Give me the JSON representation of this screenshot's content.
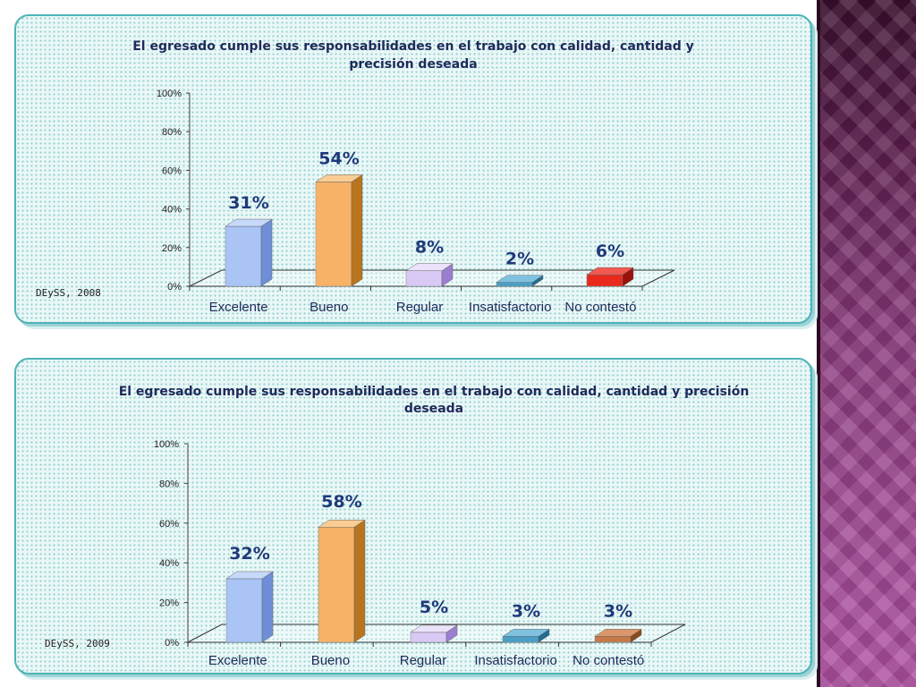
{
  "colors": {
    "panel_border": "#4fb3b8",
    "text_dark": "#1f2a5a",
    "value_label": "#1f3a7a",
    "bar_colors": [
      {
        "front": "#a9c4f5",
        "side": "#6f8ed6",
        "top": "#c7d9fb"
      },
      {
        "front": "#f7b267",
        "side": "#b8741e",
        "top": "#f9cd94"
      },
      {
        "front": "#d9c9f5",
        "side": "#9a7fd0",
        "top": "#ebe2fb"
      },
      {
        "front": "#4a9fc6",
        "side": "#1f6d93",
        "top": "#7fc2e0"
      },
      {
        "front": "#e8291c",
        "side": "#9b120a",
        "top": "#f25a4f"
      }
    ],
    "bar_colors_2": [
      {
        "front": "#a9c4f5",
        "side": "#6f8ed6",
        "top": "#c7d9fb"
      },
      {
        "front": "#f7b267",
        "side": "#b8741e",
        "top": "#f9cd94"
      },
      {
        "front": "#d9c9f5",
        "side": "#9a7fd0",
        "top": "#ebe2fb"
      },
      {
        "front": "#4a9fc6",
        "side": "#1f6d93",
        "top": "#7fc2e0"
      },
      {
        "front": "#c7794a",
        "side": "#8a4a22",
        "top": "#d9976b"
      }
    ]
  },
  "chart_data": [
    {
      "type": "bar",
      "title": "El egresado cumple sus responsabilidades en el trabajo con calidad, cantidad y precisión deseada",
      "title_lines": [
        "El egresado cumple sus responsabilidades en el trabajo con calidad, cantidad y",
        "precisión deseada"
      ],
      "categories": [
        "Excelente",
        "Bueno",
        "Regular",
        "Insatisfactorio",
        "No contestó"
      ],
      "values": [
        31,
        54,
        8,
        2,
        6
      ],
      "value_labels": [
        "31%",
        "54%",
        "8%",
        "2%",
        "6%"
      ],
      "ylim": [
        0,
        100
      ],
      "yticks": [
        "0%",
        "20%",
        "40%",
        "60%",
        "80%",
        "100%"
      ],
      "source": "DEySS, 2008",
      "grid": false
    },
    {
      "type": "bar",
      "title": "El egresado cumple sus responsabilidades en el trabajo con calidad, cantidad y precisión deseada",
      "title_lines": [
        "El egresado cumple sus responsabilidades en el trabajo con calidad, cantidad y precisión",
        "deseada"
      ],
      "categories": [
        "Excelente",
        "Bueno",
        "Regular",
        "Insatisfactorio",
        "No contestó"
      ],
      "values": [
        32,
        58,
        5,
        3,
        3
      ],
      "value_labels": [
        "32%",
        "58%",
        "5%",
        "3%",
        "3%"
      ],
      "ylim": [
        0,
        100
      ],
      "yticks": [
        "0%",
        "20%",
        "40%",
        "60%",
        "80%",
        "100%"
      ],
      "source": "DEySS, 2009",
      "grid": false
    }
  ]
}
